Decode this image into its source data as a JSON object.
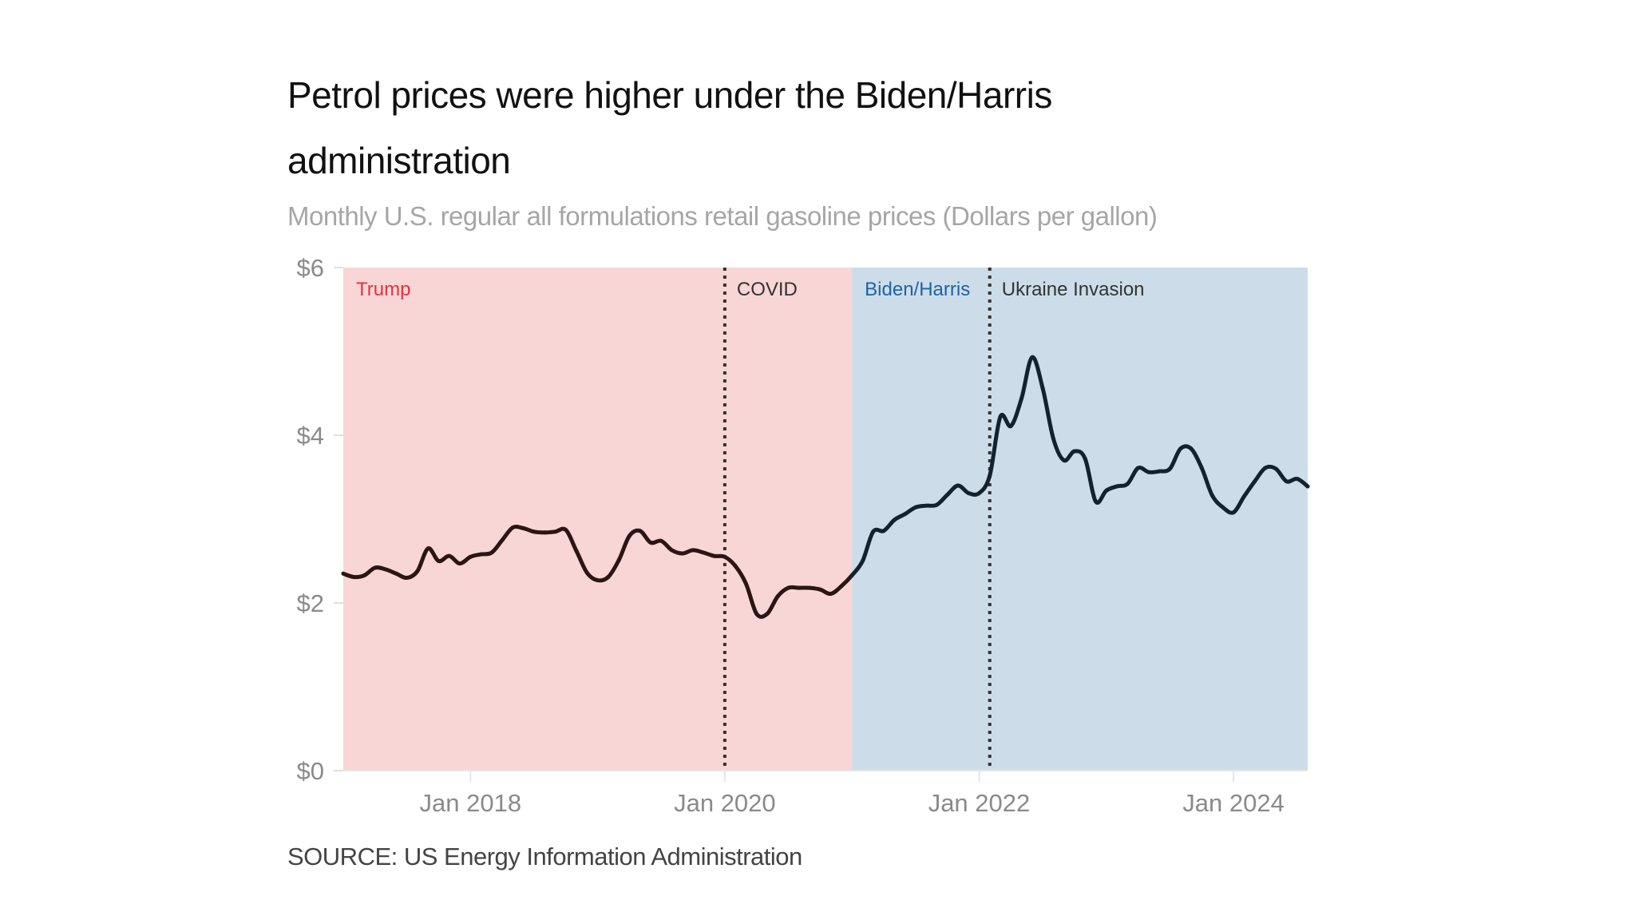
{
  "title": "Petrol prices were higher under the Biden/Harris administration",
  "subtitle": "Monthly U.S. regular all formulations retail gasoline prices (Dollars per gallon)",
  "source": "SOURCE: US Energy Information Administration",
  "colors": {
    "trump_band": "#f8d6d6",
    "biden_band": "#ccdde9",
    "trump_label": "#e5333b",
    "biden_label": "#1f62a8",
    "event_label": "#333333",
    "line_trump": "#2b1515",
    "line_biden": "#13222e"
  },
  "chart_data": {
    "type": "line",
    "title": "Petrol prices were higher under the Biden/Harris administration",
    "subtitle": "Monthly U.S. regular all formulations retail gasoline prices (Dollars per gallon)",
    "xlabel": "",
    "ylabel": "",
    "x_start": "2017-01",
    "x_end": "2024-08",
    "ylim": [
      0,
      6
    ],
    "y_ticks": [
      0,
      2,
      4,
      6
    ],
    "y_tick_labels": [
      "$0",
      "$2",
      "$4",
      "$6"
    ],
    "x_ticks": [
      "2018-01",
      "2020-01",
      "2022-01",
      "2024-01"
    ],
    "x_tick_labels": [
      "Jan 2018",
      "Jan 2020",
      "Jan 2022",
      "Jan 2024"
    ],
    "grid": false,
    "legend": "none",
    "bands": [
      {
        "label": "Trump",
        "from": "2017-01",
        "to": "2021-01"
      },
      {
        "label": "Biden/Harris",
        "from": "2021-01",
        "to": "2024-08"
      }
    ],
    "events": [
      {
        "label": "COVID",
        "date": "2020-01"
      },
      {
        "label": "Ukraine Invasion",
        "date": "2022-02"
      }
    ],
    "x": [
      "2017-01",
      "2017-02",
      "2017-03",
      "2017-04",
      "2017-05",
      "2017-06",
      "2017-07",
      "2017-08",
      "2017-09",
      "2017-10",
      "2017-11",
      "2017-12",
      "2018-01",
      "2018-02",
      "2018-03",
      "2018-04",
      "2018-05",
      "2018-06",
      "2018-07",
      "2018-08",
      "2018-09",
      "2018-10",
      "2018-11",
      "2018-12",
      "2019-01",
      "2019-02",
      "2019-03",
      "2019-04",
      "2019-05",
      "2019-06",
      "2019-07",
      "2019-08",
      "2019-09",
      "2019-10",
      "2019-11",
      "2019-12",
      "2020-01",
      "2020-02",
      "2020-03",
      "2020-04",
      "2020-05",
      "2020-06",
      "2020-07",
      "2020-08",
      "2020-09",
      "2020-10",
      "2020-11",
      "2020-12",
      "2021-01",
      "2021-02",
      "2021-03",
      "2021-04",
      "2021-05",
      "2021-06",
      "2021-07",
      "2021-08",
      "2021-09",
      "2021-10",
      "2021-11",
      "2021-12",
      "2022-01",
      "2022-02",
      "2022-03",
      "2022-04",
      "2022-05",
      "2022-06",
      "2022-07",
      "2022-08",
      "2022-09",
      "2022-10",
      "2022-11",
      "2022-12",
      "2023-01",
      "2023-02",
      "2023-03",
      "2023-04",
      "2023-05",
      "2023-06",
      "2023-07",
      "2023-08",
      "2023-09",
      "2023-10",
      "2023-11",
      "2023-12",
      "2024-01",
      "2024-02",
      "2024-03",
      "2024-04",
      "2024-05",
      "2024-06",
      "2024-07",
      "2024-08"
    ],
    "values": [
      2.35,
      2.31,
      2.33,
      2.42,
      2.4,
      2.35,
      2.3,
      2.38,
      2.65,
      2.5,
      2.56,
      2.47,
      2.55,
      2.58,
      2.6,
      2.75,
      2.9,
      2.89,
      2.85,
      2.84,
      2.85,
      2.87,
      2.62,
      2.36,
      2.27,
      2.31,
      2.51,
      2.8,
      2.86,
      2.72,
      2.74,
      2.63,
      2.59,
      2.63,
      2.6,
      2.56,
      2.55,
      2.44,
      2.23,
      1.87,
      1.87,
      2.08,
      2.18,
      2.18,
      2.18,
      2.16,
      2.11,
      2.2,
      2.33,
      2.5,
      2.85,
      2.86,
      2.99,
      3.06,
      3.14,
      3.16,
      3.17,
      3.29,
      3.4,
      3.31,
      3.31,
      3.52,
      4.22,
      4.11,
      4.44,
      4.93,
      4.56,
      3.96,
      3.7,
      3.81,
      3.72,
      3.21,
      3.34,
      3.39,
      3.42,
      3.61,
      3.56,
      3.57,
      3.6,
      3.84,
      3.84,
      3.61,
      3.28,
      3.14,
      3.08,
      3.27,
      3.45,
      3.61,
      3.6,
      3.45,
      3.48,
      3.39
    ]
  }
}
